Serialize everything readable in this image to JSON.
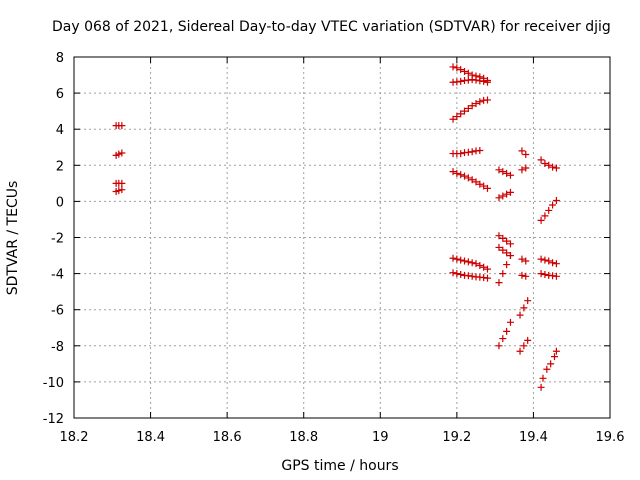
{
  "chart_data": {
    "type": "scatter",
    "title": "Day 068 of 2021, Sidereal Day-to-day VTEC variation (SDTVAR) for receiver djig",
    "xlabel": "GPS time / hours",
    "ylabel": "SDTVAR / TECUs",
    "xlim": [
      18.2,
      19.6
    ],
    "ylim": [
      -12,
      8
    ],
    "xticks": [
      18.2,
      18.4,
      18.6,
      18.8,
      19.0,
      19.2,
      19.4,
      19.6
    ],
    "xtick_labels": [
      "18.2",
      "18.4",
      "18.6",
      "18.8",
      "19",
      "19.2",
      "19.4",
      "19.6"
    ],
    "yticks": [
      8,
      6,
      4,
      2,
      0,
      -2,
      -4,
      -6,
      -8,
      -10,
      -12
    ],
    "ytick_labels": [
      "8",
      "6",
      "4",
      "2",
      "0",
      "-2",
      "-4",
      "-6",
      "-8",
      "-10",
      "-12"
    ],
    "grid": true,
    "marker": "+",
    "marker_color": "#cc0000",
    "series": [
      {
        "name": "s1",
        "x": [
          18.31,
          18.317,
          18.325
        ],
        "y": [
          4.2,
          4.2,
          4.2
        ]
      },
      {
        "name": "s2",
        "x": [
          18.31,
          18.317,
          18.325
        ],
        "y": [
          2.55,
          2.62,
          2.68
        ]
      },
      {
        "name": "s3",
        "x": [
          18.31,
          18.317,
          18.325
        ],
        "y": [
          1.0,
          1.0,
          1.0
        ]
      },
      {
        "name": "s4",
        "x": [
          18.31,
          18.317,
          18.325
        ],
        "y": [
          0.55,
          0.6,
          0.65
        ]
      },
      {
        "name": "s5",
        "x": [
          19.19,
          19.2,
          19.21,
          19.22,
          19.23,
          19.24,
          19.25,
          19.26,
          19.27,
          19.28
        ],
        "y": [
          7.45,
          7.4,
          7.3,
          7.2,
          7.1,
          7.0,
          6.95,
          6.9,
          6.82,
          6.7
        ]
      },
      {
        "name": "s6",
        "x": [
          19.19,
          19.2,
          19.21,
          19.22,
          19.23,
          19.24,
          19.25,
          19.26,
          19.27,
          19.28
        ],
        "y": [
          6.6,
          6.62,
          6.65,
          6.7,
          6.72,
          6.75,
          6.72,
          6.68,
          6.65,
          6.6
        ]
      },
      {
        "name": "s7",
        "x": [
          19.19,
          19.2,
          19.21,
          19.22,
          19.23,
          19.24,
          19.25,
          19.26,
          19.27,
          19.28
        ],
        "y": [
          4.55,
          4.7,
          4.85,
          5.0,
          5.15,
          5.3,
          5.42,
          5.52,
          5.6,
          5.62
        ]
      },
      {
        "name": "s8",
        "x": [
          19.19,
          19.2,
          19.21,
          19.22,
          19.23,
          19.24,
          19.25,
          19.26
        ],
        "y": [
          2.65,
          2.65,
          2.65,
          2.7,
          2.72,
          2.75,
          2.8,
          2.82
        ]
      },
      {
        "name": "s9",
        "x": [
          19.19,
          19.2,
          19.21,
          19.22,
          19.23,
          19.24,
          19.25,
          19.26,
          19.27,
          19.28
        ],
        "y": [
          1.65,
          1.55,
          1.48,
          1.4,
          1.3,
          1.2,
          1.08,
          0.95,
          0.85,
          0.72
        ]
      },
      {
        "name": "s10",
        "x": [
          19.19,
          19.2,
          19.21,
          19.22,
          19.23,
          19.24,
          19.25,
          19.26,
          19.27,
          19.28
        ],
        "y": [
          -3.15,
          -3.2,
          -3.25,
          -3.3,
          -3.35,
          -3.4,
          -3.45,
          -3.55,
          -3.65,
          -3.75
        ]
      },
      {
        "name": "s11",
        "x": [
          19.19,
          19.2,
          19.21,
          19.22,
          19.23,
          19.24,
          19.25,
          19.26,
          19.27,
          19.28
        ],
        "y": [
          -3.95,
          -4.0,
          -4.05,
          -4.1,
          -4.12,
          -4.15,
          -4.18,
          -4.2,
          -4.22,
          -4.25
        ]
      },
      {
        "name": "s12",
        "x": [
          19.31,
          19.32,
          19.33,
          19.34
        ],
        "y": [
          1.75,
          1.65,
          1.55,
          1.45
        ]
      },
      {
        "name": "s13",
        "x": [
          19.31,
          19.32,
          19.33,
          19.34
        ],
        "y": [
          0.2,
          0.3,
          0.4,
          0.5
        ]
      },
      {
        "name": "s14",
        "x": [
          19.31,
          19.32,
          19.33,
          19.34
        ],
        "y": [
          -1.9,
          -2.05,
          -2.2,
          -2.35
        ]
      },
      {
        "name": "s15",
        "x": [
          19.31,
          19.32,
          19.33,
          19.34
        ],
        "y": [
          -2.55,
          -2.7,
          -2.85,
          -3.0
        ]
      },
      {
        "name": "s16",
        "x": [
          19.31,
          19.32,
          19.33,
          19.34
        ],
        "y": [
          -4.5,
          -4.0,
          -3.5,
          -3.0
        ]
      },
      {
        "name": "s17",
        "x": [
          19.31,
          19.32,
          19.33,
          19.34
        ],
        "y": [
          -8.0,
          -7.6,
          -7.2,
          -6.7
        ]
      },
      {
        "name": "s18",
        "x": [
          19.37,
          19.38
        ],
        "y": [
          2.8,
          2.6
        ]
      },
      {
        "name": "s19",
        "x": [
          19.37,
          19.38
        ],
        "y": [
          1.75,
          1.85
        ]
      },
      {
        "name": "s20",
        "x": [
          19.37,
          19.38
        ],
        "y": [
          -3.2,
          -3.3
        ]
      },
      {
        "name": "s21",
        "x": [
          19.37,
          19.38
        ],
        "y": [
          -4.1,
          -4.15
        ]
      },
      {
        "name": "s22",
        "x": [
          19.365,
          19.375,
          19.385
        ],
        "y": [
          -6.3,
          -5.9,
          -5.5
        ]
      },
      {
        "name": "s23",
        "x": [
          19.365,
          19.375,
          19.385
        ],
        "y": [
          -8.3,
          -8.0,
          -7.7
        ]
      },
      {
        "name": "s24",
        "x": [
          19.42,
          19.43,
          19.44,
          19.45,
          19.46
        ],
        "y": [
          2.3,
          2.1,
          2.0,
          1.9,
          1.85
        ]
      },
      {
        "name": "s25",
        "x": [
          19.42,
          19.43,
          19.44,
          19.45,
          19.46
        ],
        "y": [
          -1.05,
          -0.8,
          -0.5,
          -0.2,
          0.05
        ]
      },
      {
        "name": "s26",
        "x": [
          19.42,
          19.43,
          19.44,
          19.45,
          19.46
        ],
        "y": [
          -3.2,
          -3.25,
          -3.3,
          -3.4,
          -3.45
        ]
      },
      {
        "name": "s27",
        "x": [
          19.42,
          19.43,
          19.44,
          19.45,
          19.46
        ],
        "y": [
          -4.0,
          -4.05,
          -4.1,
          -4.12,
          -4.15
        ]
      },
      {
        "name": "s28",
        "x": [
          19.42,
          19.425,
          19.435
        ],
        "y": [
          -10.3,
          -9.8,
          -9.3
        ]
      },
      {
        "name": "s29",
        "x": [
          19.445,
          19.455,
          19.46
        ],
        "y": [
          -9.0,
          -8.6,
          -8.3
        ]
      }
    ]
  }
}
